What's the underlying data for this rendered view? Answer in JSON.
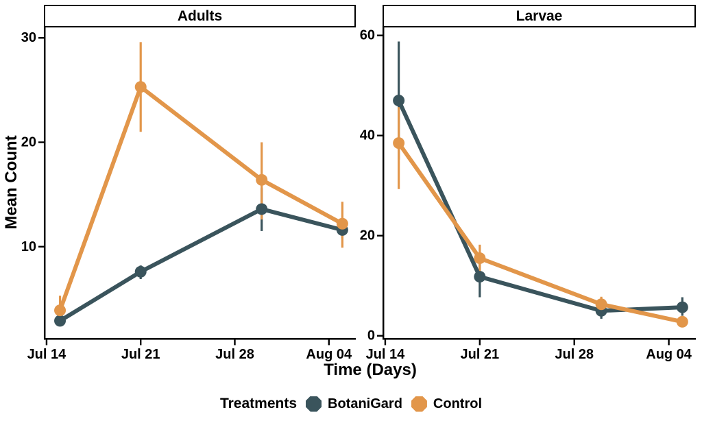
{
  "figure": {
    "y_axis_title": "Mean Count",
    "x_axis_title": "Time (Days)",
    "background_color": "#ffffff",
    "text_color": "#000000",
    "axis_color": "#000000"
  },
  "legend": {
    "title": "Treatments",
    "entries": [
      {
        "label": "BotaniGard",
        "color": "#3A545C"
      },
      {
        "label": "Control",
        "color": "#E2964A"
      }
    ]
  },
  "chart_data": {
    "type": "line",
    "title": "",
    "xlabel": "Time (Days)",
    "ylabel": "Mean Count",
    "legend_title": "Treatments",
    "legend_position": "bottom",
    "grid": false,
    "error_bars": true,
    "marker": "circle",
    "x_tick_labels": [
      "Jul 14",
      "Jul 21",
      "Jul 28",
      "Aug 04"
    ],
    "x_tick_days": [
      0,
      7,
      14,
      21
    ],
    "x_domain_days": [
      -0.2,
      23.0
    ],
    "sample_dates": [
      "Jul 15",
      "Jul 21",
      "Jul 30",
      "Aug 05"
    ],
    "sample_days": [
      1,
      7,
      16,
      22
    ],
    "panels": [
      {
        "title": "Adults",
        "ylim": [
          1.25,
          31.0
        ],
        "yticks": [
          10,
          20,
          30
        ],
        "series": [
          {
            "name": "BotaniGard",
            "color": "#3A545C",
            "mean": [
              2.9,
              7.6,
              13.6,
              11.6
            ],
            "err_low": [
              2.4,
              6.9,
              11.5,
              10.8
            ],
            "err_high": [
              3.4,
              8.2,
              15.6,
              12.4
            ]
          },
          {
            "name": "Control",
            "color": "#E2964A",
            "mean": [
              3.9,
              25.3,
              16.4,
              12.2
            ],
            "err_low": [
              2.5,
              21.0,
              12.6,
              9.9
            ],
            "err_high": [
              5.3,
              29.6,
              20.0,
              14.3
            ]
          }
        ]
      },
      {
        "title": "Larvae",
        "ylim": [
          -0.45,
          61.6
        ],
        "yticks": [
          0,
          20,
          40,
          60
        ],
        "series": [
          {
            "name": "BotaniGard",
            "color": "#3A545C",
            "mean": [
              47.0,
              11.8,
              5.0,
              5.7
            ],
            "err_low": [
              35.2,
              7.7,
              3.4,
              4.0
            ],
            "err_high": [
              58.8,
              15.9,
              6.6,
              7.7
            ]
          },
          {
            "name": "Control",
            "color": "#E2964A",
            "mean": [
              38.5,
              15.5,
              6.3,
              2.8
            ],
            "err_low": [
              29.3,
              12.8,
              4.8,
              2.3
            ],
            "err_high": [
              45.7,
              18.2,
              7.8,
              3.4
            ]
          }
        ]
      }
    ]
  }
}
